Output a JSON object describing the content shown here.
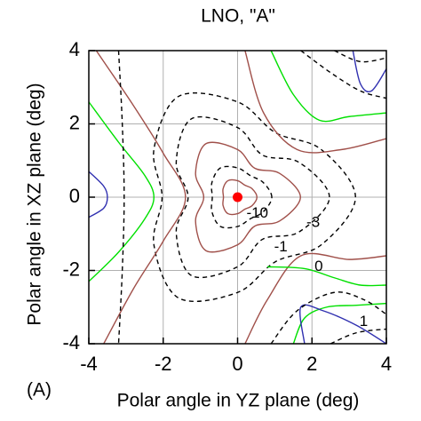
{
  "chart_data": {
    "type": "contour",
    "title": "LNO, \"A\"",
    "panel_label": "(A)",
    "xlabel": "Polar angle in YZ plane (deg)",
    "ylabel": "Polar angle in XZ plane (deg)",
    "xlim": [
      -4,
      4
    ],
    "ylim": [
      -4,
      4
    ],
    "xticks": [
      -4,
      -2,
      0,
      2,
      4
    ],
    "yticks": [
      -4,
      -2,
      0,
      2,
      4
    ],
    "grid": true,
    "point": {
      "x": 0,
      "y": 0,
      "color": "#ff0000"
    },
    "contours": [
      {
        "color": "#a0504a",
        "dashed": false,
        "closed": true,
        "x": [
          0.52,
          0.39,
          0.19,
          0,
          -0.26,
          -0.39,
          -0.38,
          -0.39,
          -0.26,
          0,
          0.19,
          0.39
        ],
        "y": [
          0,
          0.23,
          0.33,
          0.45,
          0.45,
          0.23,
          0,
          -0.23,
          -0.45,
          -0.45,
          -0.33,
          -0.23
        ]
      },
      {
        "color": "#000000",
        "dashed": true,
        "closed": true,
        "label": -10,
        "x": [
          0.92,
          0.69,
          0.34,
          0,
          -0.46,
          -0.69,
          -0.68,
          -0.69,
          -0.46,
          0,
          0.34,
          0.69
        ],
        "y": [
          0,
          0.4,
          0.59,
          0.8,
          0.8,
          0.4,
          0,
          -0.4,
          -0.8,
          -0.8,
          -0.59,
          -0.4
        ]
      },
      {
        "color": "#a0504a",
        "dashed": false,
        "closed": true,
        "x": [
          1.69,
          1.13,
          0.46,
          0,
          -0.85,
          -1.13,
          -0.91,
          -1.13,
          -0.85,
          0,
          0.46,
          1.13
        ],
        "y": [
          0,
          0.65,
          0.79,
          1.3,
          1.46,
          0.65,
          0,
          -0.65,
          -1.46,
          -1.3,
          -0.79,
          -0.65
        ]
      },
      {
        "color": "#000000",
        "dashed": true,
        "closed": true,
        "label": -3,
        "x": [
          2.47,
          1.65,
          0.67,
          0,
          -1.24,
          -1.65,
          -1.33,
          -1.65,
          -1.24,
          0,
          0.67,
          1.65
        ],
        "y": [
          0,
          0.95,
          1.15,
          1.9,
          2.14,
          0.95,
          0,
          -0.95,
          -2.14,
          -1.9,
          -1.15,
          -0.95
        ]
      },
      {
        "color": "#000000",
        "dashed": true,
        "closed": true,
        "label": -1,
        "x": [
          3.17,
          2.25,
          1.02,
          0,
          -1.59,
          -2.25,
          -2.03,
          -2.25,
          -1.59,
          0,
          1.02,
          2.25
        ],
        "y": [
          0,
          1.3,
          1.76,
          2.6,
          2.75,
          1.3,
          0,
          -1.3,
          -2.75,
          -2.6,
          -1.76,
          -1.3
        ]
      },
      {
        "color": "#a0504a",
        "dashed": false,
        "closed": false,
        "x": [
          -3.8,
          -2.8,
          -2,
          -1.4,
          -2,
          -2.8,
          -3.6
        ],
        "y": [
          4,
          2.5,
          1.2,
          0,
          -1.2,
          -2.5,
          -4
        ]
      },
      {
        "color": "#a0504a",
        "dashed": false,
        "closed": false,
        "x": [
          0.2,
          0.7,
          1.6,
          2.8,
          4
        ],
        "y": [
          4,
          2.3,
          1.3,
          1.3,
          1.6
        ]
      },
      {
        "color": "#a0504a",
        "dashed": false,
        "closed": false,
        "x": [
          0.2,
          0.8,
          1.7,
          3,
          4
        ],
        "y": [
          -4,
          -2.8,
          -1.6,
          -1.7,
          -1.6
        ]
      },
      {
        "color": "#00e000",
        "dashed": false,
        "closed": false,
        "x": [
          -4,
          -3.2,
          -2.5,
          -2.25,
          -2.5,
          -3.2,
          -4
        ],
        "y": [
          2.6,
          1.5,
          0.6,
          0,
          -0.6,
          -1.5,
          -2.3
        ]
      },
      {
        "color": "#00e000",
        "dashed": false,
        "closed": false,
        "x": [
          0.9,
          1.5,
          2.2,
          3,
          4
        ],
        "y": [
          4,
          2.8,
          2.1,
          2.2,
          2.3
        ]
      },
      {
        "color": "#00e000",
        "dashed": false,
        "closed": false,
        "label": 0,
        "x": [
          0.8,
          1.8,
          2.6,
          3.3,
          4
        ],
        "y": [
          -1.9,
          -1.95,
          -2.2,
          -2.4,
          -2.4
        ]
      },
      {
        "color": "#00e000",
        "dashed": false,
        "closed": false,
        "x": [
          1.5,
          1.8,
          2.4,
          3.2,
          4
        ],
        "y": [
          -4,
          -3.3,
          -3,
          -2.95,
          -2.9
        ]
      },
      {
        "color": "#3030b0",
        "dashed": false,
        "closed": false,
        "x": [
          -4,
          -3.6,
          -3.5,
          -3.6,
          -4
        ],
        "y": [
          0.7,
          0.3,
          0,
          -0.3,
          -0.55
        ]
      },
      {
        "color": "#3030b0",
        "dashed": false,
        "closed": false,
        "x": [
          3.1,
          3.3,
          3.6,
          4
        ],
        "y": [
          4,
          3.1,
          2.9,
          3.5
        ]
      },
      {
        "color": "#3030b0",
        "dashed": false,
        "closed": false,
        "label": 1,
        "x": [
          1.8,
          1.7,
          2.3,
          3.2,
          4
        ],
        "y": [
          -4,
          -3,
          -3.1,
          -3.5,
          -4
        ]
      },
      {
        "color": "#000000",
        "dashed": true,
        "closed": false,
        "x": [
          -3.2,
          -3.1,
          -3.05,
          -3.1,
          -3.2
        ],
        "y": [
          4,
          2,
          0,
          -2,
          -4
        ]
      },
      {
        "color": "#000000",
        "dashed": true,
        "closed": false,
        "x": [
          1.7,
          2.5,
          3.3,
          4
        ],
        "y": [
          4,
          3.4,
          2.9,
          2.7
        ]
      },
      {
        "color": "#000000",
        "dashed": true,
        "closed": false,
        "x": [
          2.6,
          3.3,
          4
        ],
        "y": [
          4,
          3.7,
          3.8
        ]
      },
      {
        "color": "#000000",
        "dashed": true,
        "closed": false,
        "x": [
          0.9,
          1.6,
          2.6,
          3.4,
          4
        ],
        "y": [
          -4,
          -3.1,
          -2.6,
          -2.8,
          -3.2
        ]
      },
      {
        "color": "#000000",
        "dashed": true,
        "closed": false,
        "x": [
          2.5,
          3.2,
          4
        ],
        "y": [
          -4,
          -3.7,
          -3.6
        ]
      }
    ]
  }
}
